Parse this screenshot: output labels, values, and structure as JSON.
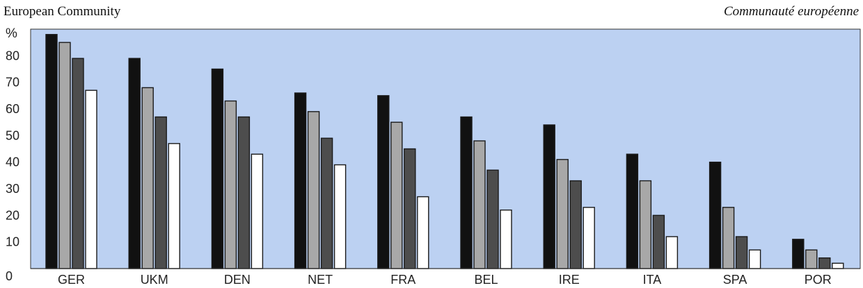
{
  "header": {
    "title_left": "European Community",
    "title_right": "Communauté européenne"
  },
  "chart_data": {
    "type": "bar",
    "y_unit_label": "%",
    "ylim": [
      0,
      90
    ],
    "yticks": [
      0,
      10,
      20,
      30,
      40,
      50,
      60,
      70,
      80
    ],
    "grid": false,
    "legend": "none",
    "categories": [
      "GER",
      "UKM",
      "DEN",
      "NET",
      "FRA",
      "BEL",
      "IRE",
      "ITA",
      "SPA",
      "POR"
    ],
    "series": [
      {
        "color": "#111111",
        "values": [
          88,
          79,
          75,
          66,
          65,
          57,
          54,
          43,
          40,
          11
        ]
      },
      {
        "color": "#a8a8a8",
        "values": [
          85,
          68,
          63,
          59,
          55,
          48,
          41,
          33,
          23,
          7
        ]
      },
      {
        "color": "#4d4d4d",
        "values": [
          79,
          57,
          57,
          49,
          45,
          37,
          33,
          20,
          12,
          4
        ]
      },
      {
        "color": "#ffffff",
        "values": [
          67,
          47,
          43,
          39,
          27,
          22,
          23,
          12,
          7,
          2
        ]
      }
    ],
    "plot_background": "#bcd1f2"
  }
}
